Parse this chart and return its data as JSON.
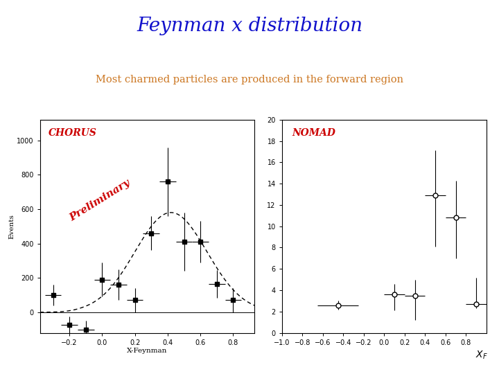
{
  "title": "Feynman x distribution",
  "title_color": "#1111CC",
  "subtitle": "Most charmed particles are produced in the forward region",
  "subtitle_color": "#CC7722",
  "background_color": "#FFFFFF",
  "chorus_label": "CHORUS",
  "chorus_label_color": "#CC0000",
  "preliminary_label": "Preliminary",
  "preliminary_color": "#CC0000",
  "nomad_label": "NOMAD",
  "nomad_label_color": "#CC0000",
  "chorus_x": [
    -0.3,
    -0.2,
    -0.1,
    0.0,
    0.1,
    0.2,
    0.3,
    0.4,
    0.5,
    0.6,
    0.7,
    0.8
  ],
  "chorus_y": [
    100,
    -75,
    -100,
    190,
    160,
    70,
    460,
    760,
    410,
    410,
    165,
    70
  ],
  "chorus_xerr": [
    0.05,
    0.05,
    0.05,
    0.05,
    0.05,
    0.05,
    0.05,
    0.05,
    0.05,
    0.05,
    0.05,
    0.05
  ],
  "chorus_yerr": [
    60,
    50,
    50,
    100,
    90,
    70,
    100,
    200,
    170,
    120,
    80,
    70
  ],
  "chorus_ylim": [
    -120,
    1120
  ],
  "chorus_yticks": [
    0,
    200,
    400,
    600,
    800,
    1000
  ],
  "chorus_xlim": [
    -0.38,
    0.93
  ],
  "chorus_xticks": [
    -0.2,
    0.0,
    0.2,
    0.4,
    0.6,
    0.8
  ],
  "chorus_xlabel": "X-Feynman",
  "chorus_ylabel": "Events",
  "nomad_x": [
    -0.45,
    0.1,
    0.3,
    0.5,
    0.7,
    0.9
  ],
  "nomad_y": [
    2.6,
    3.6,
    3.5,
    12.9,
    10.8,
    2.7
  ],
  "nomad_xerr": [
    0.2,
    0.1,
    0.1,
    0.1,
    0.1,
    0.1
  ],
  "nomad_yerr_lo": [
    0.4,
    1.5,
    2.3,
    4.8,
    3.8,
    0.4
  ],
  "nomad_yerr_hi": [
    0.4,
    1.0,
    1.5,
    4.2,
    3.5,
    2.5
  ],
  "nomad_ylim": [
    0,
    20
  ],
  "nomad_yticks": [
    0,
    2,
    4,
    6,
    8,
    10,
    12,
    14,
    16,
    18,
    20
  ],
  "nomad_xlim": [
    -1.0,
    1.0
  ],
  "nomad_xticks": [
    -1.0,
    -0.8,
    -0.6,
    -0.4,
    -0.2,
    0.0,
    0.2,
    0.4,
    0.6,
    0.8
  ],
  "nomad_xlabel": "X",
  "nomad_xlabel_sub": "F",
  "curve_mu": 0.42,
  "curve_sigma": 0.22,
  "curve_amp": 580
}
